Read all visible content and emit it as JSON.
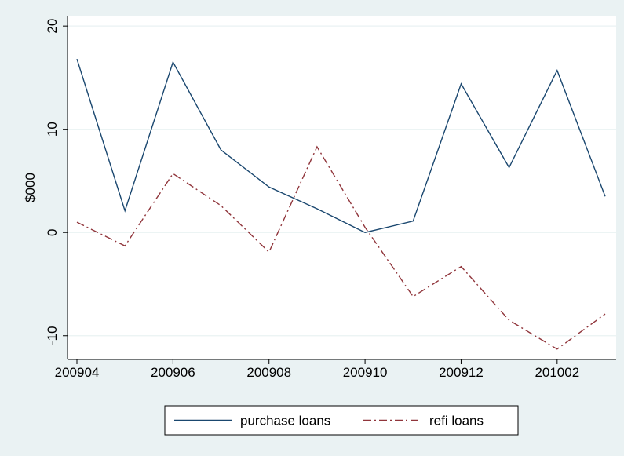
{
  "chart_data": {
    "type": "line",
    "title": "",
    "xlabel": "",
    "ylabel": "$000",
    "x": [
      "200904",
      "200905",
      "200906",
      "200907",
      "200908",
      "200909",
      "200910",
      "200911",
      "200912",
      "201001",
      "201002",
      "201003"
    ],
    "xticks": [
      "200904",
      "200906",
      "200908",
      "200910",
      "200912",
      "201002"
    ],
    "yticks": [
      -10,
      0,
      10,
      20
    ],
    "ylim": [
      -12.3,
      21
    ],
    "grid": true,
    "legend_position": "bottom",
    "series": [
      {
        "name": "purchase loans",
        "color": "#1a476f",
        "dash": "solid",
        "values": [
          16.8,
          2.1,
          16.5,
          8.0,
          4.4,
          2.3,
          0.0,
          1.1,
          14.4,
          6.3,
          15.7,
          3.5
        ]
      },
      {
        "name": "refi loans",
        "color": "#90353b",
        "dash": "dash-dot",
        "values": [
          1.0,
          -1.3,
          5.7,
          2.6,
          -1.9,
          8.3,
          0.5,
          -6.2,
          -3.3,
          -8.5,
          -11.3,
          -7.9
        ]
      }
    ],
    "background_color": "#eaf2f3",
    "plot_background_color": "#ffffff",
    "grid_color": "#eaf2f3"
  }
}
